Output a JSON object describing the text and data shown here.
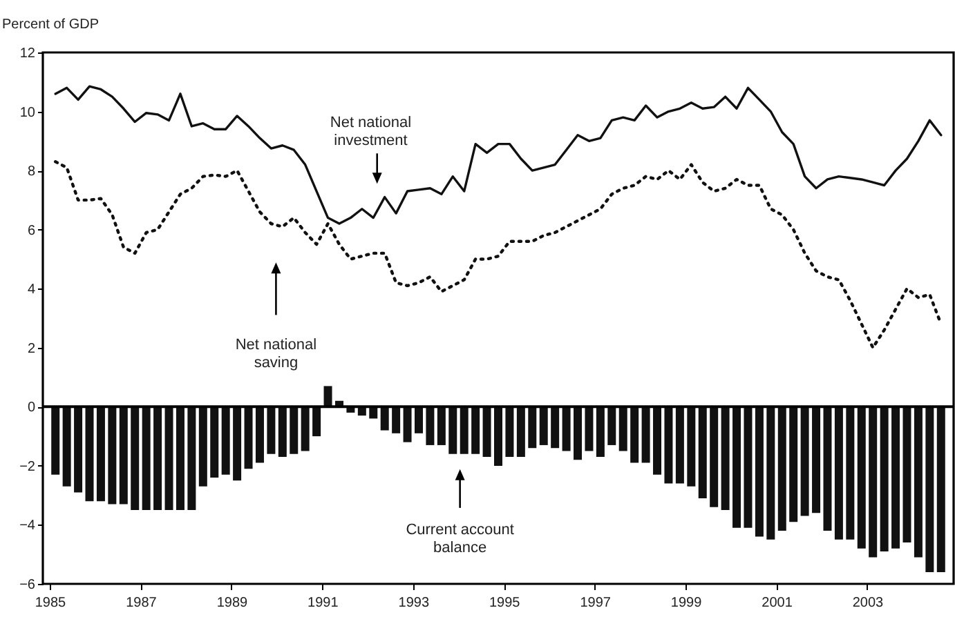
{
  "chart_data": {
    "type": "bar",
    "ylabel": "Percent of GDP",
    "x": [
      1985.125,
      1985.375,
      1985.625,
      1985.875,
      1986.125,
      1986.375,
      1986.625,
      1986.875,
      1987.125,
      1987.375,
      1987.625,
      1987.875,
      1988.125,
      1988.375,
      1988.625,
      1988.875,
      1989.125,
      1989.375,
      1989.625,
      1989.875,
      1990.125,
      1990.375,
      1990.625,
      1990.875,
      1991.125,
      1991.375,
      1991.625,
      1991.875,
      1992.125,
      1992.375,
      1992.625,
      1992.875,
      1993.125,
      1993.375,
      1993.625,
      1993.875,
      1994.125,
      1994.375,
      1994.625,
      1994.875,
      1995.125,
      1995.375,
      1995.625,
      1995.875,
      1996.125,
      1996.375,
      1996.625,
      1996.875,
      1997.125,
      1997.375,
      1997.625,
      1997.875,
      1998.125,
      1998.375,
      1998.625,
      1998.875,
      1999.125,
      1999.375,
      1999.625,
      1999.875,
      2000.125,
      2000.375,
      2000.625,
      2000.875,
      2001.125,
      2001.375,
      2001.625,
      2001.875,
      2002.125,
      2002.375,
      2002.625,
      2002.875,
      2003.125,
      2003.375,
      2003.625,
      2003.875,
      2004.125,
      2004.375,
      2004.625
    ],
    "series": [
      {
        "color": "#111111",
        "values": [
          -2.3,
          -2.7,
          -2.9,
          -3.2,
          -3.2,
          -3.3,
          -3.3,
          -3.5,
          -3.5,
          -3.5,
          -3.5,
          -3.5,
          -3.5,
          -2.7,
          -2.4,
          -2.3,
          -2.5,
          -2.1,
          -1.9,
          -1.6,
          -1.7,
          -1.6,
          -1.5,
          -1.0,
          0.7,
          0.2,
          -0.2,
          -0.3,
          -0.4,
          -0.8,
          -0.9,
          -1.2,
          -0.9,
          -1.3,
          -1.3,
          -1.6,
          -1.6,
          -1.6,
          -1.7,
          -2.0,
          -1.7,
          -1.7,
          -1.4,
          -1.3,
          -1.4,
          -1.5,
          -1.8,
          -1.5,
          -1.7,
          -1.3,
          -1.5,
          -1.9,
          -1.9,
          -2.3,
          -2.6,
          -2.6,
          -2.7,
          -3.1,
          -3.4,
          -3.5,
          -4.1,
          -4.1,
          -4.4,
          -4.5,
          -4.2,
          -3.9,
          -3.7,
          -3.6,
          -4.2,
          -4.5,
          -4.5,
          -4.8,
          -5.1,
          -4.9,
          -4.8,
          -4.6,
          -5.1,
          -5.6,
          -5.6
        ]
      },
      {
        "type": "line",
        "color": "#111111",
        "values": [
          10.6,
          10.8,
          10.4,
          10.85,
          10.75,
          10.5,
          10.1,
          9.65,
          9.95,
          9.9,
          9.7,
          10.6,
          9.5,
          9.6,
          9.4,
          9.4,
          9.85,
          9.5,
          9.1,
          8.75,
          8.85,
          8.7,
          8.2,
          7.3,
          6.4,
          6.2,
          6.4,
          6.7,
          6.4,
          7.1,
          6.55,
          7.3,
          7.35,
          7.4,
          7.2,
          7.8,
          7.3,
          8.9,
          8.6,
          8.9,
          8.9,
          8.4,
          8.0,
          8.1,
          8.2,
          8.7,
          9.2,
          9.0,
          9.1,
          9.7,
          9.8,
          9.7,
          10.2,
          9.8,
          10.0,
          10.1,
          10.3,
          10.1,
          10.15,
          10.5,
          10.1,
          10.8,
          10.4,
          10.0,
          9.3,
          8.9,
          7.8,
          7.4,
          7.7,
          7.8,
          7.75,
          7.7,
          7.6,
          7.5,
          8.0,
          8.4,
          9.0,
          9.7,
          9.2
        ]
      },
      {
        "type": "line",
        "color": "#111111",
        "line_style": "dotted",
        "values": [
          8.3,
          8.1,
          7.0,
          7.0,
          7.05,
          6.5,
          5.4,
          5.2,
          5.9,
          6.0,
          6.6,
          7.2,
          7.4,
          7.8,
          7.85,
          7.8,
          8.0,
          7.3,
          6.6,
          6.2,
          6.1,
          6.4,
          5.9,
          5.5,
          6.2,
          5.5,
          5.0,
          5.1,
          5.2,
          5.2,
          4.2,
          4.1,
          4.2,
          4.4,
          3.9,
          4.1,
          4.3,
          5.0,
          5.0,
          5.1,
          5.6,
          5.6,
          5.6,
          5.8,
          5.9,
          6.1,
          6.3,
          6.5,
          6.7,
          7.2,
          7.4,
          7.5,
          7.8,
          7.7,
          8.0,
          7.7,
          8.2,
          7.6,
          7.3,
          7.4,
          7.7,
          7.5,
          7.5,
          6.7,
          6.5,
          6.0,
          5.2,
          4.6,
          4.4,
          4.3,
          3.6,
          2.8,
          2.0,
          2.6,
          3.3,
          4.0,
          3.7,
          3.8,
          2.8
        ]
      }
    ],
    "xlim": [
      1985,
      2004.75
    ],
    "xticks": [
      1985,
      1987,
      1989,
      1991,
      1993,
      1995,
      1997,
      1999,
      2001,
      2003
    ],
    "ylim": [
      -6,
      12
    ],
    "yticks": [
      -6,
      -4,
      -2,
      0,
      2,
      4,
      6,
      8,
      10,
      12
    ],
    "ref_lines": [
      {
        "axis": "y",
        "value": 0
      }
    ],
    "annotations": [
      "Net national investment",
      "Net national saving",
      "Current account balance"
    ]
  }
}
